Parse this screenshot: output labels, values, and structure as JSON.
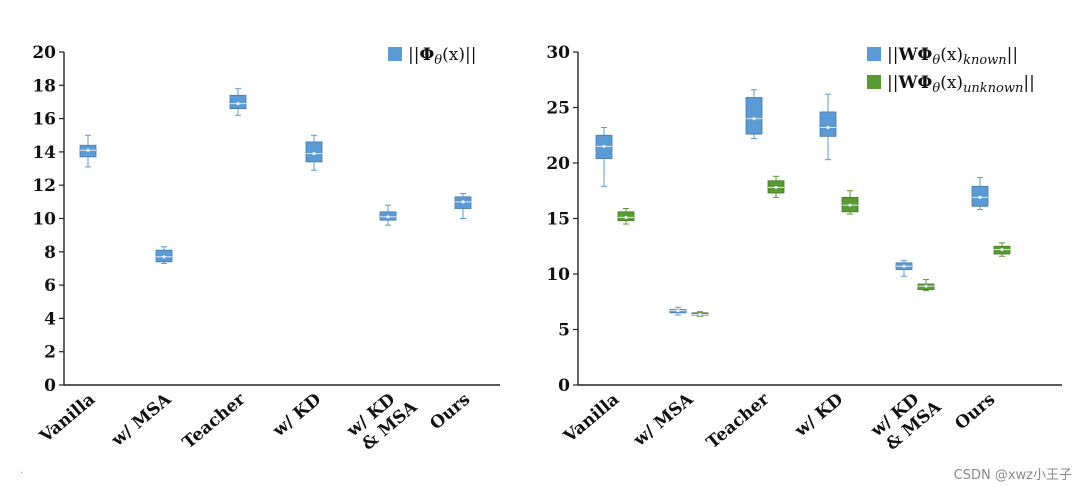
{
  "chart_data": [
    {
      "type": "box",
      "categories": [
        "Vanilla",
        "w/ MSA",
        "Teacher",
        "w/ KD",
        "w/ KD\n& MSA",
        "Ours"
      ],
      "ylim": [
        0,
        20
      ],
      "yticks": [
        0,
        2,
        4,
        6,
        8,
        10,
        12,
        14,
        16,
        18,
        20
      ],
      "legend_position": "top-right",
      "series": [
        {
          "name": "||Φθ(x)||",
          "legend_label_parts": [
            "||",
            "Φ",
            "θ",
            "(x)||"
          ],
          "color": "#5b9bd5",
          "boxes": [
            {
              "min": 13.1,
              "q1": 13.7,
              "median": 14.1,
              "q3": 14.4,
              "max": 15.0
            },
            {
              "min": 7.3,
              "q1": 7.4,
              "median": 7.7,
              "q3": 8.1,
              "max": 8.3
            },
            {
              "min": 16.2,
              "q1": 16.6,
              "median": 16.9,
              "q3": 17.4,
              "max": 17.8
            },
            {
              "min": 12.9,
              "q1": 13.4,
              "median": 13.9,
              "q3": 14.6,
              "max": 15.0
            },
            {
              "min": 9.6,
              "q1": 9.9,
              "median": 10.1,
              "q3": 10.4,
              "max": 10.8
            },
            {
              "min": 10.0,
              "q1": 10.6,
              "median": 11.0,
              "q3": 11.3,
              "max": 11.5
            }
          ]
        }
      ]
    },
    {
      "type": "box",
      "categories": [
        "Vanilla",
        "w/ MSA",
        "Teacher",
        "w/ KD",
        "w/ KD\n& MSA",
        "Ours"
      ],
      "ylim": [
        0,
        30
      ],
      "yticks": [
        0,
        5,
        10,
        15,
        20,
        25,
        30
      ],
      "legend_position": "top-right",
      "series": [
        {
          "name": "||WΦθ(x)known||",
          "legend_label_parts": [
            "||",
            "WΦ",
            "θ",
            "(x)",
            "known",
            "||"
          ],
          "color": "#5b9bd5",
          "boxes": [
            {
              "min": 17.9,
              "q1": 20.4,
              "median": 21.5,
              "q3": 22.5,
              "max": 23.2
            },
            {
              "min": 6.3,
              "q1": 6.5,
              "median": 6.7,
              "q3": 6.8,
              "max": 7.0
            },
            {
              "min": 22.2,
              "q1": 22.6,
              "median": 24.0,
              "q3": 25.9,
              "max": 26.6
            },
            {
              "min": 20.3,
              "q1": 22.4,
              "median": 23.2,
              "q3": 24.6,
              "max": 26.2
            },
            {
              "min": 9.8,
              "q1": 10.4,
              "median": 10.7,
              "q3": 11.0,
              "max": 11.2
            },
            {
              "min": 15.8,
              "q1": 16.1,
              "median": 16.9,
              "q3": 17.9,
              "max": 18.7
            }
          ]
        },
        {
          "name": "||WΦθ(x)unknown||",
          "legend_label_parts": [
            "||",
            "WΦ",
            "θ",
            "(x)",
            "unknown",
            "||"
          ],
          "color": "#5a9a32",
          "boxes": [
            {
              "min": 14.5,
              "q1": 14.8,
              "median": 15.1,
              "q3": 15.6,
              "max": 15.9
            },
            {
              "min": 6.2,
              "q1": 6.3,
              "median": 6.35,
              "q3": 6.5,
              "max": 6.6
            },
            {
              "min": 16.9,
              "q1": 17.3,
              "median": 17.8,
              "q3": 18.4,
              "max": 18.8
            },
            {
              "min": 15.4,
              "q1": 15.6,
              "median": 16.2,
              "q3": 16.9,
              "max": 17.5
            },
            {
              "min": 8.5,
              "q1": 8.6,
              "median": 8.9,
              "q3": 9.1,
              "max": 9.5
            },
            {
              "min": 11.6,
              "q1": 11.8,
              "median": 12.2,
              "q3": 12.5,
              "max": 12.8
            }
          ]
        }
      ]
    }
  ],
  "watermark": "CSDN @xwz小王子",
  "corner_mark": "·"
}
